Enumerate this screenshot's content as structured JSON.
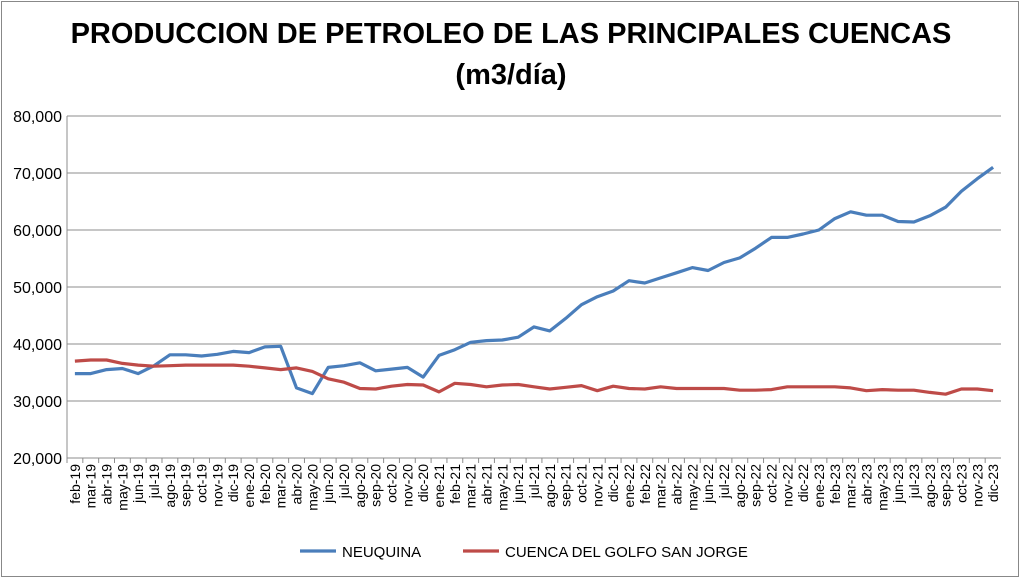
{
  "chart_data": {
    "type": "line",
    "title": "PRODUCCION DE PETROLEO DE LAS PRINCIPALES CUENCAS",
    "subtitle": "(m3/día)",
    "xlabel": "",
    "ylabel": "",
    "ylim": [
      20000,
      80000
    ],
    "yticks": [
      "20,000",
      "30,000",
      "40,000",
      "50,000",
      "60,000",
      "70,000",
      "80,000"
    ],
    "grid": true,
    "legend": "bottom",
    "categories": [
      "feb-19",
      "mar-19",
      "abr-19",
      "may-19",
      "jun-19",
      "jul-19",
      "ago-19",
      "sep-19",
      "oct-19",
      "nov-19",
      "dic-19",
      "ene-20",
      "feb-20",
      "mar-20",
      "abr-20",
      "may-20",
      "jun-20",
      "jul-20",
      "ago-20",
      "sep-20",
      "oct-20",
      "nov-20",
      "dic-20",
      "ene-21",
      "feb-21",
      "mar-21",
      "abr-21",
      "may-21",
      "jun-21",
      "jul-21",
      "ago-21",
      "sep-21",
      "oct-21",
      "nov-21",
      "dic-21",
      "ene-22",
      "feb-22",
      "mar-22",
      "abr-22",
      "may-22",
      "jun-22",
      "jul-22",
      "ago-22",
      "sep-22",
      "oct-22",
      "nov-22",
      "dic-22",
      "ene-23",
      "feb-23",
      "mar-23",
      "abr-23",
      "may-23",
      "jun-23",
      "jul-23",
      "ago-23",
      "sep-23",
      "oct-23",
      "nov-23",
      "dic-23"
    ],
    "series": [
      {
        "name": "NEUQUINA",
        "color": "#4a7ebb",
        "values": [
          34800,
          34800,
          35500,
          35700,
          34800,
          36200,
          38100,
          38100,
          37900,
          38200,
          38700,
          38500,
          39500,
          39600,
          32300,
          31300,
          35900,
          36200,
          36700,
          35300,
          35600,
          35900,
          34200,
          38000,
          39000,
          40300,
          40600,
          40700,
          41200,
          43000,
          42300,
          44500,
          46900,
          48300,
          49300,
          51100,
          50700,
          51600,
          52500,
          53400,
          52900,
          54300,
          55100,
          56800,
          58700,
          58700,
          59300,
          60000,
          62000,
          63200,
          62600,
          62600,
          61500,
          61400,
          62500,
          64000,
          66800,
          69000,
          71000
        ]
      },
      {
        "name": "CUENCA DEL GOLFO SAN JORGE",
        "color": "#be4b48",
        "values": [
          37000,
          37200,
          37200,
          36600,
          36300,
          36100,
          36200,
          36300,
          36300,
          36300,
          36300,
          36100,
          35800,
          35500,
          35800,
          35200,
          33900,
          33300,
          32200,
          32100,
          32600,
          32900,
          32800,
          31600,
          33100,
          32900,
          32500,
          32800,
          32900,
          32500,
          32100,
          32400,
          32700,
          31800,
          32600,
          32200,
          32100,
          32500,
          32200,
          32200,
          32200,
          32200,
          31900,
          31900,
          32000,
          32500,
          32500,
          32500,
          32500,
          32300,
          31800,
          32000,
          31900,
          31900,
          31500,
          31200,
          32100,
          32100,
          31800
        ]
      }
    ]
  }
}
